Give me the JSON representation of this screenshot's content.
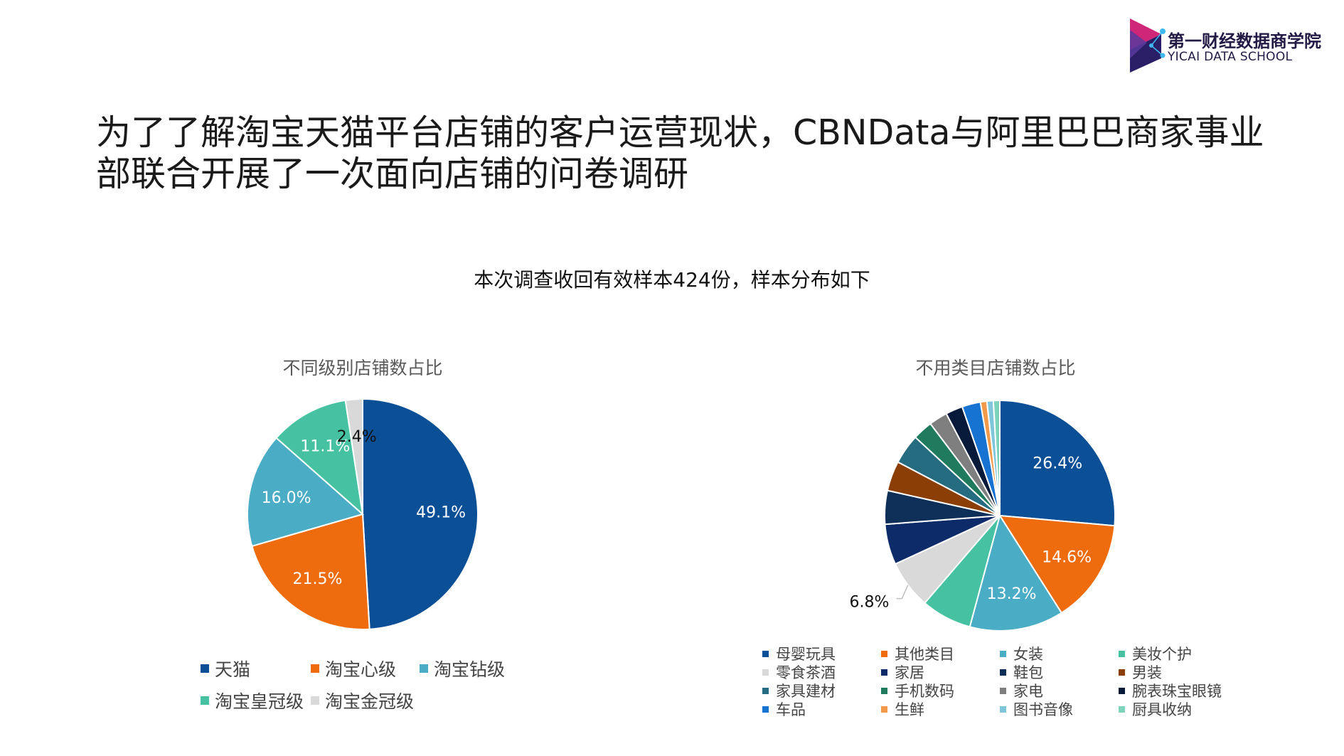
{
  "brand": {
    "name_cn": "第一财经数据商学院",
    "name_en": "YICAI DATA SCHOOL",
    "colors": {
      "magenta": "#d0267a",
      "navy": "#2a1f66",
      "purple": "#5b3a9e",
      "dot": "#3fb8f0"
    }
  },
  "headline": "为了了解淘宝天猫平台店铺的客户运营现状，CBNData与阿里巴巴商家事业部联合开展了一次面向店铺的问卷调研",
  "subtitle": "本次调查收回有效样本424份，样本分布如下",
  "chart_data": [
    {
      "type": "pie",
      "title": "不同级别店铺数占比",
      "categories": [
        "天猫",
        "淘宝心级",
        "淘宝钻级",
        "淘宝皇冠级",
        "淘宝金冠级"
      ],
      "values": [
        49.1,
        21.5,
        16.0,
        11.1,
        2.4
      ],
      "labels": [
        "49.1%",
        "21.5%",
        "16.0%",
        "11.1%",
        "2.4%"
      ],
      "colors": [
        "#0b4f96",
        "#ee6c0e",
        "#4bacc6",
        "#46c2a2",
        "#d9d9d9"
      ],
      "legend": "bottom"
    },
    {
      "type": "pie",
      "title": "不用类目店铺数占比",
      "categories": [
        "母婴玩具",
        "其他类目",
        "女装",
        "美妆个护",
        "零食茶酒",
        "家居",
        "鞋包",
        "男装",
        "家具建材",
        "手机数码",
        "家电",
        "腕表珠宝眼镜",
        "车品",
        "生鲜",
        "图书音像",
        "厨具收纳"
      ],
      "values": [
        26.4,
        14.6,
        13.2,
        7.1,
        6.8,
        5.7,
        4.7,
        4.2,
        4.2,
        2.8,
        2.6,
        2.4,
        2.6,
        0.9,
        0.9,
        0.9
      ],
      "labels": [
        "26.4%",
        "14.6%",
        "13.2%",
        "",
        "6.8%",
        "",
        "",
        "",
        "",
        "",
        "",
        "",
        "",
        "",
        "",
        ""
      ],
      "colors": [
        "#0b4f96",
        "#ee6c0e",
        "#4bacc6",
        "#46c2a2",
        "#d9d9d9",
        "#0d2b69",
        "#0e3058",
        "#8b3e06",
        "#266c80",
        "#1f7a5e",
        "#7f7f7f",
        "#081a3a",
        "#1673d1",
        "#f29a4a",
        "#7fc6db",
        "#7dd3bc"
      ],
      "legend": "bottom"
    }
  ]
}
